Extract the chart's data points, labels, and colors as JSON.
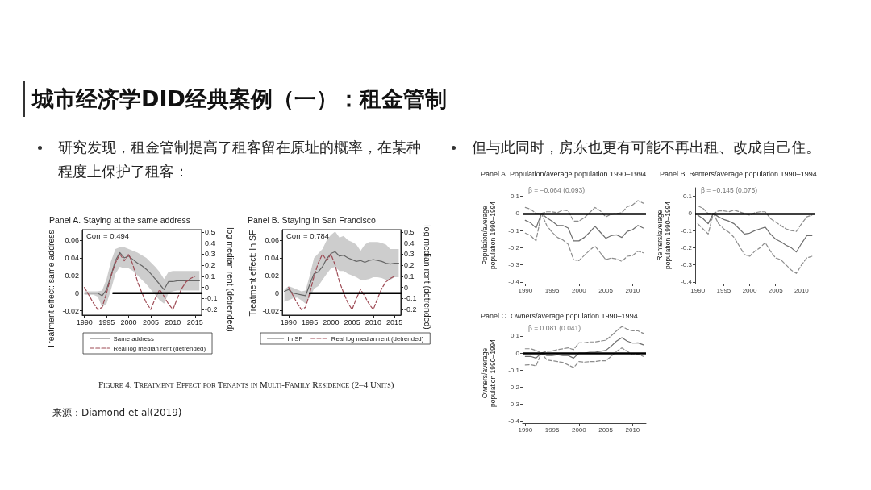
{
  "chart_data": [
    {
      "type": "other",
      "title": "城市经济学DID经典案例（一）：租金管制",
      "annotations": [
        "研究发现，租金管制提高了租客留在原址的概率，在某种程度上保护了租客：",
        "但与此同时，房东也更有可能不再出租、改成自己住。",
        "Figure 4. Treatment Effect for Tenants in Multi-Family Residence (2–4 Units)",
        "来源：Diamond et al(2019)"
      ]
    },
    {
      "type": "line",
      "title": "Panel A. Staying at the same address",
      "ylabel": "Treatment effect: same address",
      "y2label": "log median rent (detrended)",
      "annotations": [
        "Corr = 0.494"
      ],
      "x": [
        1990,
        1991,
        1992,
        1993,
        1994,
        1995,
        1996,
        1997,
        1998,
        1999,
        2000,
        2001,
        2002,
        2003,
        2004,
        2005,
        2006,
        2007,
        2008,
        2009,
        2010,
        2011,
        2012,
        2013,
        2014,
        2015,
        2016
      ],
      "series": [
        {
          "name": "Same address",
          "color": "#666666",
          "values": [
            0,
            0,
            0,
            0,
            -0.003,
            0.004,
            0.02,
            0.037,
            0.046,
            0.04,
            0.042,
            0.038,
            0.034,
            0.031,
            0.027,
            0.022,
            0.016,
            0.01,
            0.004,
            0.013,
            0.013,
            0.014,
            0.014,
            0.014,
            0.014,
            0.014,
            0.014
          ],
          "lower": [
            -0.002,
            -0.002,
            -0.002,
            -0.004,
            -0.016,
            -0.012,
            0.004,
            0.022,
            0.03,
            0.028,
            0.028,
            0.025,
            0.02,
            0.015,
            0.01,
            0.004,
            -0.002,
            -0.008,
            -0.012,
            0,
            0.002,
            0.003,
            0.003,
            0.003,
            0.003,
            0.003,
            0.003
          ],
          "upper": [
            0.002,
            0.002,
            0.002,
            0.002,
            0.003,
            0.016,
            0.036,
            0.05,
            0.052,
            0.052,
            0.05,
            0.048,
            0.046,
            0.043,
            0.04,
            0.035,
            0.03,
            0.024,
            0.016,
            0.024,
            0.025,
            0.025,
            0.025,
            0.025,
            0.025,
            0.025,
            0.025
          ]
        },
        {
          "name": "Real log median rent (detrended)",
          "color": "#9e4b55",
          "axis": "y2",
          "line_style": "dashed",
          "x": [
            1990,
            1991,
            1992,
            1993,
            1994,
            1995,
            1996,
            1997,
            1998,
            1999,
            2000,
            2001,
            2002,
            2003,
            2004,
            2005,
            2006,
            2007,
            2008,
            2009,
            2010,
            2011,
            2012,
            2013,
            2014,
            2015
          ],
          "values": [
            0,
            -0.07,
            -0.14,
            -0.2,
            -0.18,
            -0.05,
            0.1,
            0.22,
            0.3,
            0.24,
            0.3,
            0.2,
            0.05,
            -0.05,
            -0.14,
            -0.2,
            -0.1,
            -0.02,
            -0.08,
            -0.15,
            -0.2,
            -0.1,
            -0.01,
            0.05,
            0.08,
            0.1
          ]
        },
        {
          "color": "#000000",
          "x": [
            1996.5,
            2016.5
          ],
          "values": [
            0,
            0
          ]
        }
      ],
      "xlim": [
        1989.5,
        2016.5
      ],
      "xticks": [
        1990,
        1995,
        2000,
        2005,
        2010,
        2015
      ],
      "ylim": [
        -0.025,
        0.072
      ],
      "yticks": [
        -0.02,
        0,
        0.02,
        0.04,
        0.06
      ],
      "y2lim": [
        -0.25,
        0.52
      ],
      "y2ticks": [
        -0.2,
        -0.1,
        0,
        0.1,
        0.2,
        0.3,
        0.4,
        0.5
      ],
      "legend": "bottom"
    },
    {
      "type": "line",
      "title": "Panel B. Staying in San Francisco",
      "ylabel": "Treatment effect: In SF",
      "y2label": "log median rent (detrended)",
      "annotations": [
        "Corr = 0.784"
      ],
      "x": [
        1989,
        1990,
        1991,
        1992,
        1993,
        1994,
        1995,
        1996,
        1997,
        1998,
        1999,
        2000,
        2001,
        2002,
        2003,
        2004,
        2005,
        2006,
        2007,
        2008,
        2009,
        2010,
        2011,
        2012,
        2013,
        2014,
        2015,
        2016
      ],
      "series": [
        {
          "name": "In SF",
          "color": "#666666",
          "values": [
            0.002,
            0.004,
            0,
            -0.001,
            -0.002,
            -0.003,
            0.01,
            0.022,
            0.024,
            0.03,
            0.039,
            0.045,
            0.047,
            0.042,
            0.043,
            0.04,
            0.038,
            0.036,
            0.037,
            0.035,
            0.037,
            0.038,
            0.037,
            0.036,
            0.034,
            0.033,
            0.034,
            0.034
          ],
          "lower": [
            -0.01,
            -0.008,
            -0.006,
            -0.005,
            -0.008,
            -0.012,
            -0.005,
            0.005,
            0.008,
            0.015,
            0.022,
            0.028,
            0.03,
            0.025,
            0.025,
            0.022,
            0.02,
            0.018,
            0.015,
            0.015,
            0.016,
            0.018,
            0.018,
            0.017,
            0.015,
            0.015,
            0.018,
            0.018
          ],
          "upper": [
            0.004,
            0.008,
            0.006,
            0.004,
            0.002,
            0.003,
            0.02,
            0.04,
            0.045,
            0.05,
            0.06,
            0.066,
            0.07,
            0.063,
            0.065,
            0.06,
            0.058,
            0.055,
            0.048,
            0.055,
            0.058,
            0.058,
            0.058,
            0.057,
            0.055,
            0.05,
            0.05,
            0.05
          ]
        },
        {
          "name": "Real log median rent (detrended)",
          "color": "#9e4b55",
          "axis": "y2",
          "line_style": "dashed",
          "x": [
            1990,
            1991,
            1992,
            1993,
            1994,
            1995,
            1996,
            1997,
            1998,
            1999,
            2000,
            2001,
            2002,
            2003,
            2004,
            2005,
            2006,
            2007,
            2008,
            2009,
            2010,
            2011,
            2012,
            2013,
            2014,
            2015
          ],
          "values": [
            0,
            -0.07,
            -0.14,
            -0.2,
            -0.18,
            -0.05,
            0.1,
            0.22,
            0.3,
            0.24,
            0.3,
            0.2,
            0.05,
            -0.05,
            -0.14,
            -0.2,
            -0.1,
            -0.02,
            -0.08,
            -0.15,
            -0.2,
            -0.1,
            -0.01,
            0.05,
            0.08,
            0.1
          ]
        },
        {
          "color": "#000000",
          "x": [
            1995,
            2016.5
          ],
          "values": [
            0,
            0
          ]
        }
      ],
      "xlim": [
        1988.5,
        2016.5
      ],
      "xticks": [
        1990,
        1995,
        2000,
        2005,
        2010,
        2015
      ],
      "ylim": [
        -0.025,
        0.072
      ],
      "yticks": [
        -0.02,
        0,
        0.02,
        0.04,
        0.06
      ],
      "y2lim": [
        -0.25,
        0.52
      ],
      "y2ticks": [
        -0.2,
        -0.1,
        0,
        0.1,
        0.2,
        0.3,
        0.4,
        0.5
      ],
      "legend": "bottom"
    },
    {
      "type": "line",
      "title": "Panel A. Population/average population 1990–1994",
      "ylabel": "Population/average population 1990–1994",
      "annotations": [
        "β = −0.064 (0.093)"
      ],
      "x": [
        1990,
        1991,
        1992,
        1993,
        1994,
        1995,
        1996,
        1997,
        1998,
        1999,
        2000,
        2001,
        2002,
        2003,
        2004,
        2005,
        2006,
        2007,
        2008,
        2009,
        2010,
        2011,
        2012
      ],
      "series": [
        {
          "color": "#6e6e6e",
          "values": [
            -0.04,
            -0.055,
            -0.085,
            0,
            -0.025,
            -0.045,
            -0.07,
            -0.07,
            -0.085,
            -0.16,
            -0.16,
            -0.14,
            -0.11,
            -0.075,
            -0.11,
            -0.145,
            -0.13,
            -0.125,
            -0.14,
            -0.105,
            -0.095,
            -0.07,
            -0.085
          ]
        },
        {
          "color": "#8c8c8c",
          "line_style": "dashed",
          "values": [
            0.035,
            0.025,
            0,
            0,
            0.01,
            0.01,
            0.005,
            0.02,
            0.015,
            -0.045,
            -0.045,
            -0.025,
            0.005,
            0.035,
            0.015,
            -0.02,
            -0.005,
            0,
            0.005,
            0.04,
            0.05,
            0.075,
            0.06
          ]
        },
        {
          "color": "#8c8c8c",
          "line_style": "dashed",
          "values": [
            -0.115,
            -0.13,
            -0.16,
            0,
            -0.07,
            -0.11,
            -0.14,
            -0.155,
            -0.18,
            -0.27,
            -0.275,
            -0.245,
            -0.215,
            -0.19,
            -0.23,
            -0.27,
            -0.26,
            -0.265,
            -0.28,
            -0.25,
            -0.245,
            -0.22,
            -0.23
          ]
        }
      ],
      "xlim": [
        1989.5,
        2012.5
      ],
      "xticks": [
        1990,
        1995,
        2000,
        2005,
        2010
      ],
      "ylim": [
        -0.41,
        0.15
      ],
      "yticks": [
        -0.4,
        -0.3,
        -0.2,
        -0.1,
        0,
        0.1
      ],
      "ref_lines": [
        {
          "axis": "y",
          "value": 0,
          "color": "#000000"
        }
      ]
    },
    {
      "type": "line",
      "title": "Panel B. Renters/average population 1990–1994",
      "ylabel": "Renters/average population 1990–1994",
      "annotations": [
        "β = −0.145 (0.075)"
      ],
      "x": [
        1990,
        1991,
        1992,
        1993,
        1994,
        1995,
        1996,
        1997,
        1998,
        1999,
        2000,
        2001,
        2002,
        2003,
        2004,
        2005,
        2006,
        2007,
        2008,
        2009,
        2010,
        2011,
        2012
      ],
      "series": [
        {
          "color": "#6e6e6e",
          "values": [
            -0.01,
            -0.03,
            -0.06,
            0,
            -0.02,
            -0.035,
            -0.045,
            -0.06,
            -0.09,
            -0.12,
            -0.115,
            -0.1,
            -0.09,
            -0.08,
            -0.12,
            -0.15,
            -0.165,
            -0.185,
            -0.2,
            -0.225,
            -0.175,
            -0.13,
            -0.13
          ]
        },
        {
          "color": "#8c8c8c",
          "line_style": "dashed",
          "values": [
            0.045,
            0.03,
            0,
            0,
            0.015,
            0.015,
            0.01,
            0.02,
            0.01,
            0,
            -0.01,
            0.005,
            0.01,
            0.01,
            -0.03,
            -0.05,
            -0.07,
            -0.09,
            -0.1,
            -0.105,
            -0.06,
            -0.02,
            -0.01
          ]
        },
        {
          "color": "#8c8c8c",
          "line_style": "dashed",
          "values": [
            -0.06,
            -0.09,
            -0.12,
            0,
            -0.06,
            -0.09,
            -0.11,
            -0.14,
            -0.19,
            -0.24,
            -0.25,
            -0.22,
            -0.2,
            -0.17,
            -0.22,
            -0.26,
            -0.27,
            -0.3,
            -0.33,
            -0.35,
            -0.3,
            -0.26,
            -0.25
          ]
        }
      ],
      "xlim": [
        1989.5,
        2012.5
      ],
      "xticks": [
        1990,
        1995,
        2000,
        2005,
        2010
      ],
      "ylim": [
        -0.41,
        0.15
      ],
      "yticks": [
        -0.4,
        -0.3,
        -0.2,
        -0.1,
        0,
        0.1
      ],
      "ref_lines": [
        {
          "axis": "y",
          "value": 0,
          "color": "#000000"
        }
      ]
    },
    {
      "type": "line",
      "title": "Panel C. Owners/average population 1990–1994",
      "ylabel": "Owners/average population 1990–1994",
      "annotations": [
        "β = 0.081 (0.041)"
      ],
      "x": [
        1990,
        1991,
        1992,
        1993,
        1994,
        1995,
        1996,
        1997,
        1998,
        1999,
        2000,
        2001,
        2002,
        2003,
        2004,
        2005,
        2006,
        2007,
        2008,
        2009,
        2010,
        2011,
        2012
      ],
      "series": [
        {
          "color": "#6e6e6e",
          "values": [
            -0.02,
            -0.02,
            -0.03,
            0,
            -0.015,
            -0.015,
            -0.01,
            -0.015,
            -0.015,
            -0.03,
            0,
            0,
            0.005,
            0.005,
            0.01,
            0.015,
            0.04,
            0.07,
            0.09,
            0.07,
            0.058,
            0.06,
            0.048
          ]
        },
        {
          "color": "#8c8c8c",
          "line_style": "dashed",
          "values": [
            0.025,
            0.025,
            0.015,
            0,
            0.01,
            0.012,
            0.02,
            0.025,
            0.03,
            0.02,
            0.06,
            0.06,
            0.065,
            0.065,
            0.07,
            0.075,
            0.1,
            0.13,
            0.155,
            0.14,
            0.13,
            0.13,
            0.115
          ]
        },
        {
          "color": "#8c8c8c",
          "line_style": "dashed",
          "values": [
            -0.07,
            -0.068,
            -0.075,
            0,
            -0.04,
            -0.045,
            -0.05,
            -0.055,
            -0.07,
            -0.085,
            -0.05,
            -0.053,
            -0.05,
            -0.05,
            -0.045,
            -0.045,
            -0.02,
            0.01,
            0.03,
            0.01,
            -0.01,
            -0.005,
            -0.02
          ]
        }
      ],
      "xlim": [
        1989.5,
        2012.5
      ],
      "xticks": [
        1990,
        1995,
        2000,
        2005,
        2010
      ],
      "ylim": [
        -0.41,
        0.17
      ],
      "yticks": [
        -0.4,
        -0.3,
        -0.2,
        -0.1,
        0,
        0.1
      ],
      "ref_lines": [
        {
          "axis": "y",
          "value": 0,
          "color": "#000000"
        }
      ]
    }
  ]
}
